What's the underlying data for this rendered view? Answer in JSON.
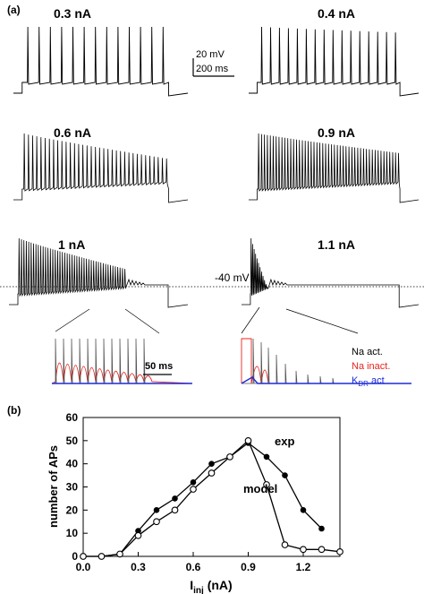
{
  "panel_a": {
    "label": "(a)",
    "scale_bar": {
      "voltage": "20 mV",
      "time": "200 ms"
    },
    "traces": [
      {
        "label": "0.3 nA",
        "spikes": 13,
        "adapt": 0.0,
        "block_after": null
      },
      {
        "label": "0.4 nA",
        "spikes": 16,
        "adapt": 0.1,
        "block_after": null
      },
      {
        "label": "0.6 nA",
        "spikes": 35,
        "adapt": 0.45,
        "block_after": null
      },
      {
        "label": "0.9 nA",
        "spikes": 49,
        "adapt": 0.35,
        "block_after": null
      },
      {
        "label": "1 nA",
        "spikes": 45,
        "adapt": 0.55,
        "block_after": 0.72
      },
      {
        "label": "1.1 nA",
        "spikes": 12,
        "adapt": 0.9,
        "block_after": 0.12
      }
    ],
    "threshold_label": "-40 mV",
    "inset_scale": "50 ms",
    "inset_legend": [
      {
        "label": "Na act.",
        "color": "#000000"
      },
      {
        "label": "Na inact.",
        "color": "#e8231e"
      },
      {
        "label": "K",
        "sub": "DR",
        "suffix": " act",
        "color": "#1c2bd6"
      }
    ]
  },
  "panel_b": {
    "label": "(b)",
    "chart_data": {
      "type": "line",
      "ylabel": "number of APs",
      "xlabel_main": "I",
      "xlabel_sub": "inj",
      "xlabel_unit": " (nA)",
      "xlim": [
        0.0,
        1.4
      ],
      "ylim": [
        0,
        60
      ],
      "xticks": [
        0.0,
        0.3,
        0.6,
        0.9,
        1.2
      ],
      "xtick_labels": [
        "0.0",
        "0.3",
        "0.6",
        "0.9",
        "1.2"
      ],
      "yticks": [
        0,
        10,
        20,
        30,
        40,
        50,
        60
      ],
      "ytick_labels": [
        "0",
        "10",
        "20",
        "30",
        "40",
        "50",
        "60"
      ],
      "series": [
        {
          "name": "exp",
          "marker": "filled",
          "x": [
            0.0,
            0.1,
            0.2,
            0.3,
            0.4,
            0.5,
            0.6,
            0.7,
            0.8,
            0.9,
            1.0,
            1.1,
            1.2,
            1.3
          ],
          "y": [
            0,
            0,
            1,
            11,
            20,
            25,
            32,
            40,
            43,
            49,
            43,
            35,
            20,
            12
          ]
        },
        {
          "name": "model",
          "marker": "open",
          "x": [
            0.0,
            0.1,
            0.2,
            0.3,
            0.4,
            0.5,
            0.6,
            0.7,
            0.8,
            0.9,
            1.0,
            1.1,
            1.2,
            1.3,
            1.4
          ],
          "y": [
            0,
            0,
            1,
            9,
            15,
            20,
            29,
            36,
            43,
            50,
            31,
            5,
            3,
            3,
            2
          ]
        }
      ]
    }
  }
}
